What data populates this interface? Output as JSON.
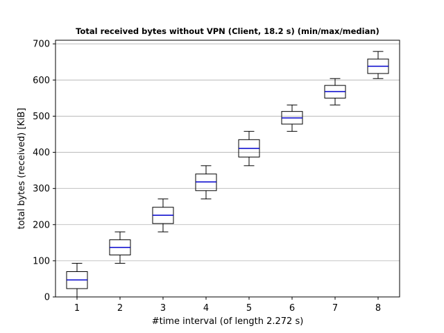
{
  "chart_data": {
    "type": "boxplot",
    "title": "Total received bytes without VPN (Client, 18.2 s) (min/max/median)",
    "xlabel": "#time interval (of length 2.272 s)",
    "ylabel": "total bytes (received) [KiB]",
    "categories": [
      "1",
      "2",
      "3",
      "4",
      "5",
      "6",
      "7",
      "8"
    ],
    "ylim": [
      0,
      710
    ],
    "yticks": [
      0,
      100,
      200,
      300,
      400,
      500,
      600,
      700
    ],
    "grid": "horizontal",
    "colors": {
      "box": "#000000",
      "median": "#0000cc",
      "grid": "#b0b0b0"
    },
    "series": [
      {
        "boxes": [
          {
            "category": "1",
            "min": 0,
            "q1": 23,
            "median": 47,
            "q3": 70,
            "max": 93
          },
          {
            "category": "2",
            "min": 93,
            "q1": 116,
            "median": 137,
            "q3": 158,
            "max": 180
          },
          {
            "category": "3",
            "min": 180,
            "q1": 203,
            "median": 226,
            "q3": 248,
            "max": 271
          },
          {
            "category": "4",
            "min": 271,
            "q1": 294,
            "median": 318,
            "q3": 340,
            "max": 363
          },
          {
            "category": "5",
            "min": 363,
            "q1": 387,
            "median": 411,
            "q3": 435,
            "max": 458
          },
          {
            "category": "6",
            "min": 458,
            "q1": 478,
            "median": 495,
            "q3": 513,
            "max": 531
          },
          {
            "category": "7",
            "min": 531,
            "q1": 550,
            "median": 568,
            "q3": 585,
            "max": 604
          },
          {
            "category": "8",
            "min": 604,
            "q1": 618,
            "median": 638,
            "q3": 658,
            "max": 679
          }
        ]
      }
    ]
  }
}
